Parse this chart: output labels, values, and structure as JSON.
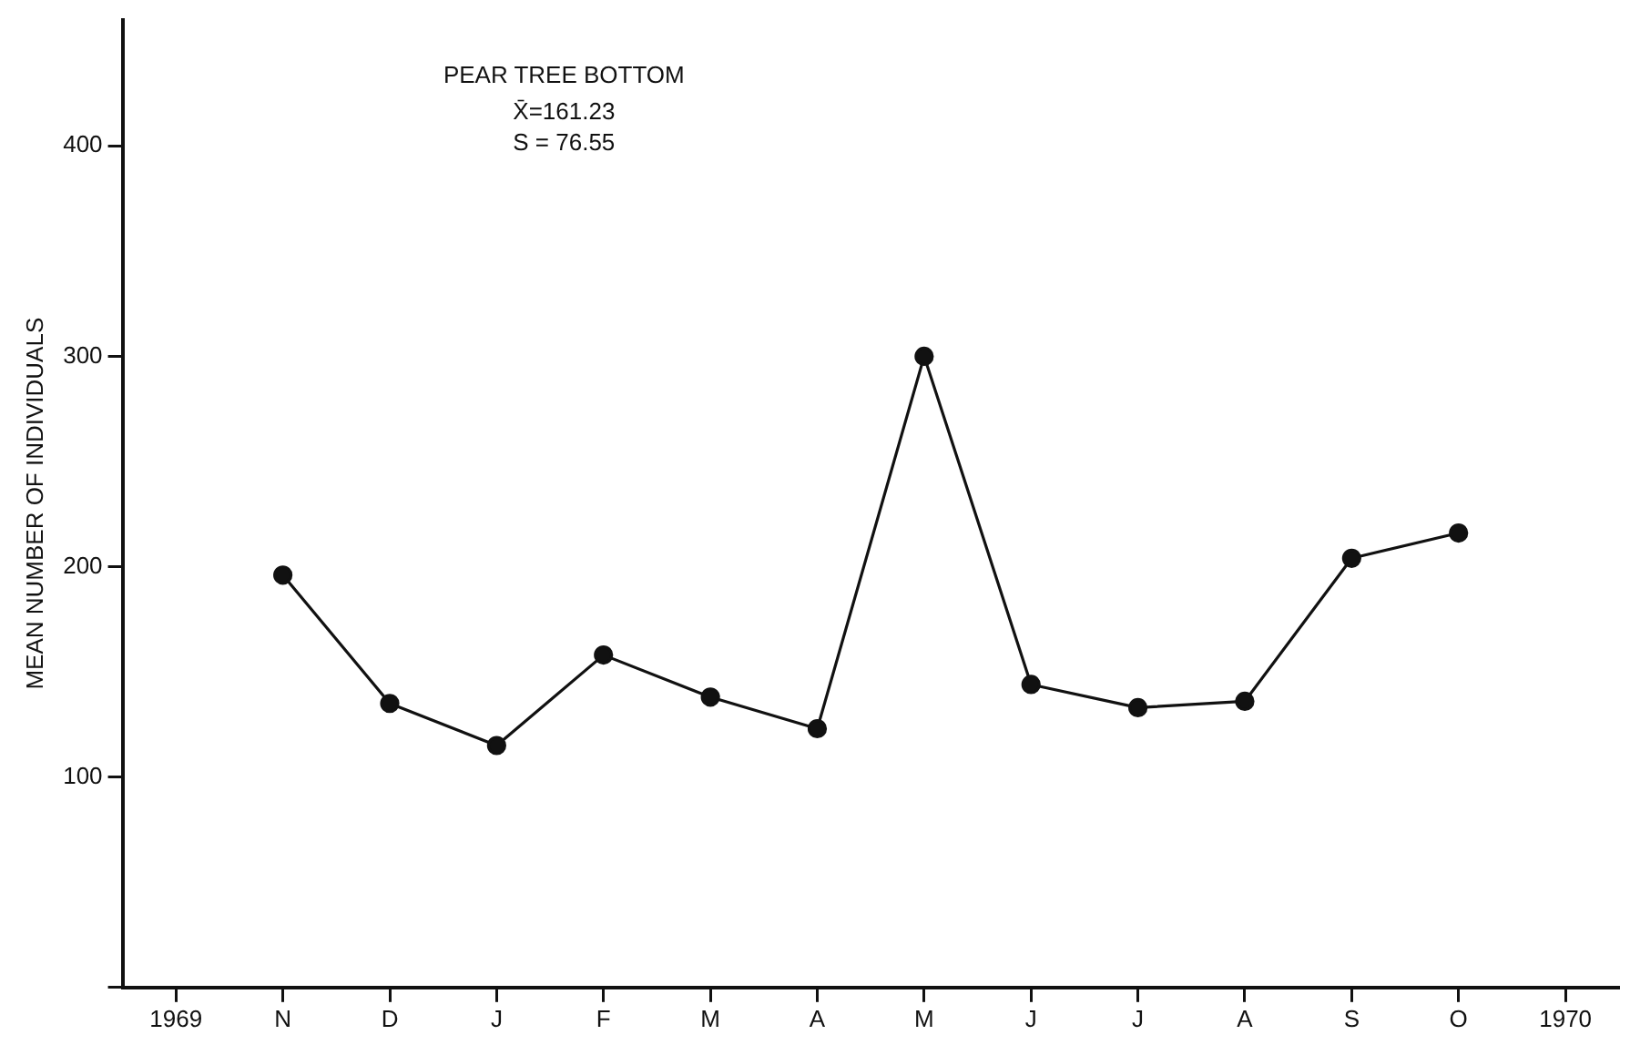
{
  "chart_data": {
    "type": "line",
    "title": "PEAR TREE BOTTOM",
    "ylabel": "MEAN NUMBER OF INDIVIDUALS",
    "annotations": [
      "X̄=161.23",
      "S = 76.55"
    ],
    "categories": [
      "1969",
      "N",
      "D",
      "J",
      "F",
      "M",
      "A",
      "M",
      "J",
      "J",
      "A",
      "S",
      "O",
      "1970"
    ],
    "series": [
      {
        "color": "#111111",
        "values": [
          null,
          196,
          135,
          115,
          158,
          138,
          123,
          300,
          144,
          133,
          136,
          204,
          216,
          null
        ]
      }
    ],
    "ylim": [
      0,
      460
    ],
    "yticks": [
      {
        "value": 0,
        "label": null
      },
      100,
      200,
      300,
      400
    ],
    "grid": false,
    "legend": false,
    "marker": "circle",
    "line_style": "solid"
  }
}
